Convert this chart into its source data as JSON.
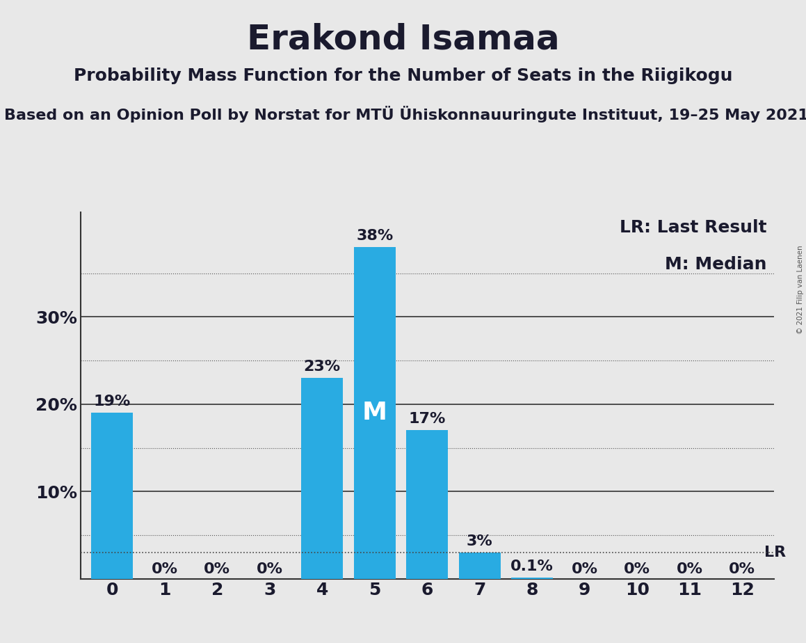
{
  "title": "Erakond Isamaa",
  "subtitle": "Probability Mass Function for the Number of Seats in the Riigikogu",
  "source": "Based on an Opinion Poll by Norstat for MTÜ Ühiskonnauuringute Instituut, 19–25 May 2021",
  "copyright": "© 2021 Filip van Laenen",
  "categories": [
    0,
    1,
    2,
    3,
    4,
    5,
    6,
    7,
    8,
    9,
    10,
    11,
    12
  ],
  "values": [
    0.19,
    0.0,
    0.0,
    0.0,
    0.23,
    0.38,
    0.17,
    0.03,
    0.001,
    0.0,
    0.0,
    0.0,
    0.0
  ],
  "bar_color": "#29ABE2",
  "background_color": "#E8E8E8",
  "median_seat": 5,
  "lr_value": 0.03,
  "lr_label": "LR",
  "median_label": "M",
  "legend_lr": "LR: Last Result",
  "legend_m": "M: Median",
  "ylim": [
    0,
    0.42
  ],
  "yticks": [
    0.0,
    0.1,
    0.2,
    0.3
  ],
  "ytick_labels": [
    "",
    "10%",
    "20%",
    "30%"
  ],
  "dotted_yticks": [
    0.05,
    0.15,
    0.25,
    0.35
  ],
  "bar_labels": [
    "19%",
    "0%",
    "0%",
    "0%",
    "23%",
    "38%",
    "17%",
    "3%",
    "0.1%",
    "0%",
    "0%",
    "0%",
    "0%"
  ],
  "title_fontsize": 36,
  "subtitle_fontsize": 18,
  "source_fontsize": 16,
  "label_fontsize": 16,
  "tick_fontsize": 18,
  "legend_fontsize": 18,
  "median_fontsize": 26
}
